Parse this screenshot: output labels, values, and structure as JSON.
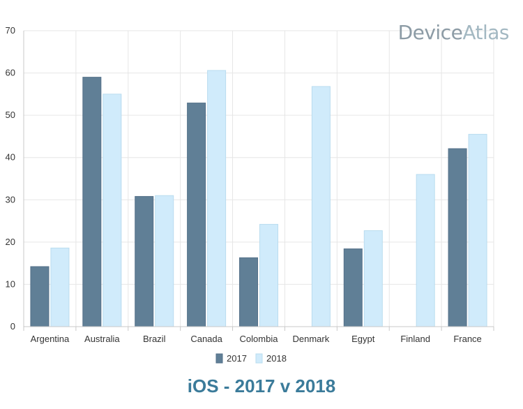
{
  "logo": {
    "part1": "Device",
    "part2": "Atlas"
  },
  "chart_data": {
    "type": "bar",
    "title": "iOS - 2017 v 2018",
    "xlabel": "",
    "ylabel": "",
    "ylim": [
      0,
      70
    ],
    "yticks": [
      0,
      10,
      20,
      30,
      40,
      50,
      60,
      70
    ],
    "grid": true,
    "legend_position": "bottom",
    "categories": [
      "Argentina",
      "Australia",
      "Brazil",
      "Canada",
      "Colombia",
      "Denmark",
      "Egypt",
      "Finland",
      "France"
    ],
    "series": [
      {
        "name": "2017",
        "color": "#607f96",
        "values": [
          14.2,
          59.0,
          30.8,
          52.9,
          16.3,
          null,
          18.4,
          null,
          42.1
        ]
      },
      {
        "name": "2018",
        "color": "#d0ebfb",
        "values": [
          18.6,
          55.0,
          31.0,
          60.6,
          24.2,
          56.8,
          22.7,
          36.0,
          45.5
        ]
      }
    ]
  }
}
